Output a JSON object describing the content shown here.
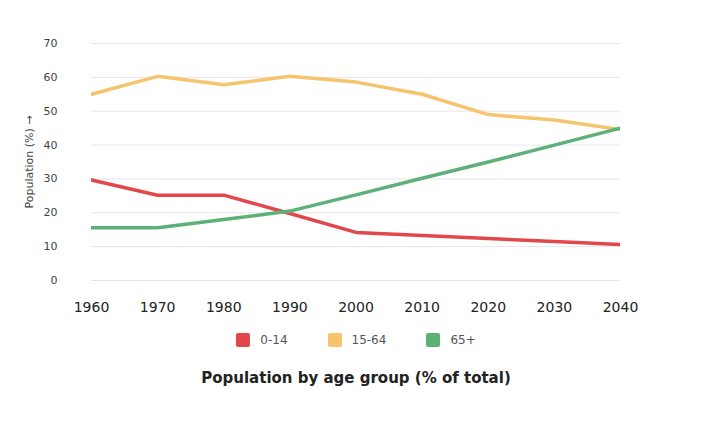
{
  "chart_data": {
    "type": "line",
    "title": "Population by age group (% of total)",
    "y_label": "Population (%)",
    "x": [
      1960,
      1970,
      1980,
      1990,
      2000,
      2010,
      2020,
      2030,
      2040
    ],
    "series": [
      {
        "name": "0-14",
        "color": "#e2474b",
        "values": [
          29.7,
          25.2,
          25.2,
          19.8,
          14.2,
          13.3,
          12.4,
          11.5,
          10.6
        ]
      },
      {
        "name": "15-64",
        "color": "#f6c46c",
        "values": [
          55,
          60.3,
          57.8,
          60.3,
          58.6,
          55,
          49,
          47.4,
          44.6
        ]
      },
      {
        "name": "65+",
        "color": "#5cb176",
        "values": [
          15.6,
          15.6,
          18,
          20.5,
          25.3,
          30.2,
          35,
          40,
          45
        ]
      }
    ],
    "xlim": [
      1960,
      2040
    ],
    "xticks": [
      1960,
      1970,
      1980,
      1990,
      2000,
      2010,
      2020,
      2030,
      2040
    ],
    "ylim": [
      0,
      70
    ],
    "yticks": [
      0,
      10,
      20,
      30,
      40,
      50,
      60,
      70
    ],
    "grid": true,
    "legend": "bottom"
  }
}
